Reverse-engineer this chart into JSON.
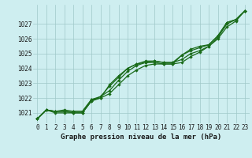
{
  "title": "Graphe pression niveau de la mer (hPa)",
  "bg_color": "#ceeef0",
  "grid_color": "#a0c8c8",
  "line_color": "#1a6b1a",
  "x_labels": [
    "0",
    "1",
    "2",
    "3",
    "4",
    "5",
    "6",
    "7",
    "8",
    "9",
    "10",
    "11",
    "12",
    "13",
    "14",
    "15",
    "16",
    "17",
    "18",
    "19",
    "20",
    "21",
    "22",
    "23"
  ],
  "ylim": [
    1020.3,
    1028.3
  ],
  "yticks": [
    1021,
    1022,
    1023,
    1024,
    1025,
    1026,
    1027
  ],
  "series": [
    [
      1020.6,
      1021.2,
      1021.1,
      1021.1,
      1021.1,
      1021.1,
      1021.9,
      1022.0,
      1022.3,
      1022.9,
      1023.5,
      1023.9,
      1024.2,
      1024.3,
      1024.3,
      1024.3,
      1024.4,
      1024.8,
      1025.1,
      1025.5,
      1026.0,
      1026.8,
      1027.2,
      1027.9
    ],
    [
      1020.6,
      1021.2,
      1021.1,
      1021.2,
      1021.1,
      1021.1,
      1021.9,
      1022.1,
      1022.5,
      1023.2,
      1023.8,
      1024.2,
      1024.4,
      1024.5,
      1024.4,
      1024.4,
      1024.6,
      1025.0,
      1025.2,
      1025.5,
      1026.1,
      1027.0,
      1027.3,
      1027.9
    ],
    [
      1020.6,
      1021.2,
      1021.1,
      1021.1,
      1021.0,
      1021.0,
      1021.8,
      1022.1,
      1022.8,
      1023.4,
      1024.0,
      1024.3,
      1024.5,
      1024.5,
      1024.4,
      1024.4,
      1024.9,
      1025.2,
      1025.4,
      1025.6,
      1026.2,
      1027.1,
      1027.3,
      1027.9
    ],
    [
      1020.6,
      1021.2,
      1021.0,
      1021.0,
      1021.0,
      1021.0,
      1021.8,
      1022.0,
      1022.9,
      1023.5,
      1024.0,
      1024.3,
      1024.4,
      1024.4,
      1024.3,
      1024.3,
      1024.9,
      1025.3,
      1025.5,
      1025.6,
      1026.2,
      1027.1,
      1027.3,
      1027.9
    ]
  ],
  "figsize": [
    3.2,
    2.0
  ],
  "dpi": 100,
  "title_fontsize": 6.5,
  "tick_fontsize": 5.5,
  "line_width": 0.9,
  "marker_size": 2.2
}
